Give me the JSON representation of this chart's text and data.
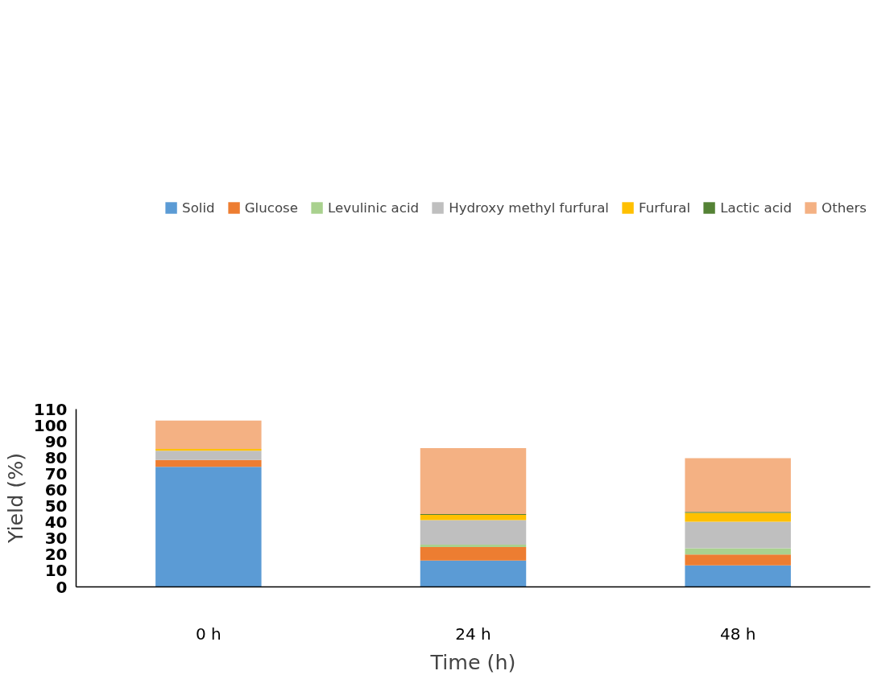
{
  "chart_data": {
    "type": "bar",
    "stacked": true,
    "xlabel": "Time (h)",
    "ylabel": "Yield (%)",
    "categories": [
      "0 h",
      "24 h",
      "48 h"
    ],
    "ylim": [
      0,
      110
    ],
    "yticks": [
      0,
      10,
      20,
      30,
      40,
      50,
      60,
      70,
      80,
      90,
      100,
      110
    ],
    "grid": false,
    "legend": "top",
    "series": [
      {
        "name": "Solid",
        "color": "#5b9bd5",
        "values": [
          74.3,
          16.3,
          13.3
        ]
      },
      {
        "name": "Glucose",
        "color": "#ed7d31",
        "values": [
          4.2,
          8.3,
          6.7
        ]
      },
      {
        "name": "Levulinic acid",
        "color": "#a9d18e",
        "values": [
          0,
          1.5,
          3.9
        ]
      },
      {
        "name": "Hydroxy methyl furfural",
        "color": "#bfbfbf",
        "values": [
          5.8,
          15.2,
          16.4
        ]
      },
      {
        "name": "Furfural",
        "color": "#ffc000",
        "values": [
          1.1,
          3.2,
          5.5
        ]
      },
      {
        "name": "Lactic acid",
        "color": "#548235",
        "values": [
          0,
          0.5,
          0.6
        ]
      },
      {
        "name": "Others",
        "color": "#f4b183",
        "values": [
          17.5,
          40.8,
          33.2
        ]
      }
    ]
  }
}
